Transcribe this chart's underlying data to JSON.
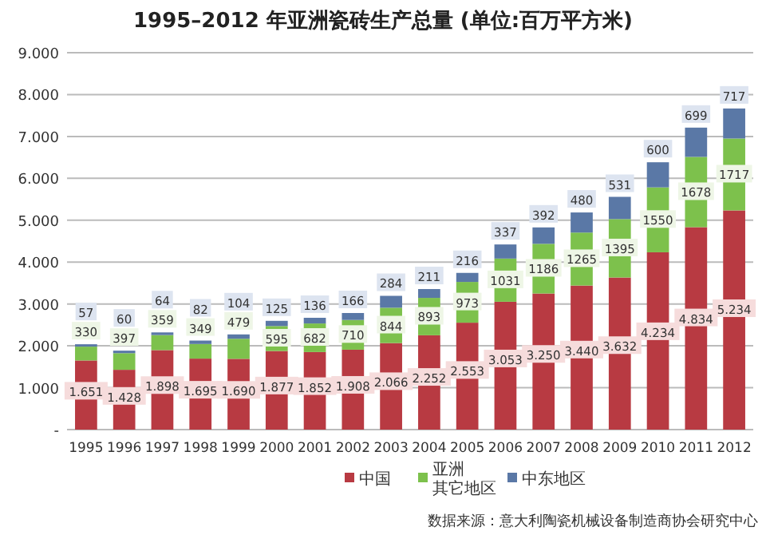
{
  "chart_data": {
    "type": "bar",
    "stacked": true,
    "title": "1995–2012 年亚洲瓷砖生产总量 (单位:百万平方米)",
    "categories": [
      "1995",
      "1996",
      "1997",
      "1998",
      "1999",
      "2000",
      "2001",
      "2002",
      "2003",
      "2004",
      "2005",
      "2006",
      "2007",
      "2008",
      "2009",
      "2010",
      "2011",
      "2012"
    ],
    "series": [
      {
        "name": "中国",
        "color": "#b83a42",
        "values": [
          1651,
          1428,
          1898,
          1695,
          1690,
          1877,
          1852,
          1908,
          2066,
          2252,
          2553,
          3053,
          3250,
          3440,
          3632,
          4234,
          4834,
          5234
        ],
        "value_labels": [
          "1.651",
          "1.428",
          "1.898",
          "1.695",
          "1.690",
          "1.877",
          "1.852",
          "1.908",
          "2.066",
          "2.252",
          "2.553",
          "3.053",
          "3.250",
          "3.440",
          "3.632",
          "4.234",
          "4.834",
          "5.234"
        ]
      },
      {
        "name": "亚洲其它地区",
        "color": "#7dc14c",
        "values": [
          330,
          397,
          359,
          349,
          479,
          595,
          682,
          710,
          844,
          893,
          973,
          1031,
          1186,
          1265,
          1395,
          1550,
          1678,
          1717
        ],
        "value_labels": [
          "330",
          "397",
          "359",
          "349",
          "479",
          "595",
          "682",
          "710",
          "844",
          "893",
          "973",
          "1031",
          "1186",
          "1265",
          "1395",
          "1550",
          "1678",
          "1717"
        ]
      },
      {
        "name": "中东地区",
        "color": "#5a78a6",
        "values": [
          57,
          60,
          64,
          82,
          104,
          125,
          136,
          166,
          284,
          211,
          216,
          337,
          392,
          480,
          531,
          600,
          699,
          717
        ],
        "value_labels": [
          "57",
          "60",
          "64",
          "82",
          "104",
          "125",
          "136",
          "166",
          "284",
          "211",
          "216",
          "337",
          "392",
          "480",
          "531",
          "600",
          "699",
          "717"
        ]
      }
    ],
    "ylim": [
      0,
      9000
    ],
    "yticks": [
      {
        "value": 0,
        "label": "-"
      },
      {
        "value": 1000,
        "label": "1.000"
      },
      {
        "value": 2000,
        "label": "2.000"
      },
      {
        "value": 3000,
        "label": "3.000"
      },
      {
        "value": 4000,
        "label": "4.000"
      },
      {
        "value": 5000,
        "label": "5.000"
      },
      {
        "value": 6000,
        "label": "6.000"
      },
      {
        "value": 7000,
        "label": "7.000"
      },
      {
        "value": 8000,
        "label": "8.000"
      },
      {
        "value": 9000,
        "label": "9.000"
      }
    ],
    "grid": "y",
    "legend": "bottom",
    "annotations": [
      "数据来源：意大利陶瓷机械设备制造商协会研究中心"
    ]
  }
}
